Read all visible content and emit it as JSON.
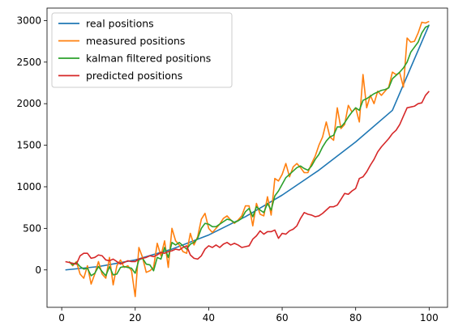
{
  "chart_data": {
    "type": "line",
    "title": "",
    "xlabel": "",
    "ylabel": "",
    "xlim": [
      -4,
      105
    ],
    "ylim": [
      -450,
      3150
    ],
    "xticks": [
      0,
      20,
      40,
      60,
      80,
      100
    ],
    "yticks": [
      0,
      500,
      1000,
      1500,
      2000,
      2500,
      3000
    ],
    "grid": false,
    "legend_position": "top-left",
    "series": [
      {
        "name": "real positions",
        "color": "#1f77b4",
        "x": [
          1,
          10,
          20,
          30,
          40,
          50,
          60,
          70,
          80,
          90,
          100
        ],
        "y": [
          0,
          40,
          120,
          250,
          420,
          640,
          900,
          1200,
          1540,
          1920,
          2950
        ]
      },
      {
        "name": "measured positions",
        "color": "#ff7f0e",
        "x": [
          2,
          3,
          4,
          5,
          6,
          7,
          8,
          9,
          10,
          11,
          12,
          13,
          14,
          15,
          16,
          17,
          18,
          19,
          20,
          21,
          22,
          23,
          24,
          25,
          26,
          27,
          28,
          29,
          30,
          31,
          32,
          33,
          34,
          35,
          36,
          37,
          38,
          39,
          40,
          41,
          42,
          43,
          44,
          45,
          46,
          47,
          48,
          49,
          50,
          51,
          52,
          53,
          54,
          55,
          56,
          57,
          58,
          59,
          60,
          61,
          62,
          63,
          64,
          65,
          66,
          67,
          68,
          69,
          70,
          71,
          72,
          73,
          74,
          75,
          76,
          77,
          78,
          79,
          80,
          81,
          82,
          83,
          84,
          85,
          86,
          87,
          88,
          89,
          90,
          91,
          92,
          93,
          94,
          95,
          96,
          97,
          98,
          99,
          100
        ],
        "y": [
          100,
          50,
          100,
          -50,
          -100,
          50,
          -170,
          -50,
          100,
          -50,
          -100,
          150,
          -180,
          50,
          120,
          30,
          50,
          -10,
          -320,
          270,
          150,
          -30,
          -10,
          30,
          320,
          170,
          350,
          30,
          500,
          350,
          300,
          220,
          200,
          440,
          300,
          400,
          610,
          680,
          500,
          450,
          500,
          550,
          620,
          650,
          600,
          560,
          600,
          650,
          770,
          770,
          530,
          800,
          670,
          650,
          880,
          660,
          1100,
          1070,
          1150,
          1280,
          1120,
          1240,
          1280,
          1230,
          1170,
          1170,
          1280,
          1370,
          1500,
          1600,
          1780,
          1600,
          1560,
          1950,
          1700,
          1750,
          1980,
          1900,
          1950,
          1780,
          2350,
          1950,
          2100,
          2000,
          2150,
          2100,
          2150,
          2200,
          2380,
          2350,
          2370,
          2200,
          2790,
          2740,
          2750,
          2850,
          2980,
          2970,
          2990
        ]
      },
      {
        "name": "kalman filtered positions",
        "color": "#2ca02c",
        "x": [
          2,
          3,
          4,
          5,
          6,
          7,
          8,
          9,
          10,
          11,
          12,
          13,
          14,
          15,
          16,
          17,
          18,
          19,
          20,
          21,
          22,
          23,
          24,
          25,
          26,
          27,
          28,
          29,
          30,
          31,
          32,
          33,
          34,
          35,
          36,
          37,
          38,
          39,
          40,
          41,
          42,
          43,
          44,
          45,
          46,
          47,
          48,
          49,
          50,
          51,
          52,
          53,
          54,
          55,
          56,
          57,
          58,
          59,
          60,
          61,
          62,
          63,
          64,
          65,
          66,
          67,
          68,
          69,
          70,
          71,
          72,
          73,
          74,
          75,
          76,
          77,
          78,
          79,
          80,
          81,
          82,
          83,
          84,
          85,
          86,
          87,
          88,
          89,
          90,
          91,
          92,
          93,
          94,
          95,
          96,
          97,
          98,
          99,
          100
        ],
        "y": [
          100,
          60,
          90,
          40,
          10,
          20,
          -70,
          -40,
          40,
          -20,
          -70,
          40,
          -60,
          -50,
          30,
          40,
          30,
          20,
          -40,
          120,
          140,
          70,
          60,
          -10,
          150,
          130,
          270,
          150,
          330,
          300,
          330,
          290,
          250,
          310,
          330,
          380,
          500,
          560,
          550,
          520,
          520,
          550,
          580,
          610,
          600,
          570,
          590,
          620,
          700,
          740,
          640,
          760,
          720,
          690,
          800,
          720,
          890,
          950,
          1030,
          1110,
          1150,
          1190,
          1230,
          1250,
          1220,
          1200,
          1250,
          1330,
          1390,
          1480,
          1550,
          1600,
          1620,
          1720,
          1720,
          1770,
          1840,
          1900,
          1950,
          1920,
          2040,
          2060,
          2090,
          2120,
          2140,
          2160,
          2170,
          2190,
          2300,
          2340,
          2380,
          2430,
          2500,
          2620,
          2680,
          2740,
          2850,
          2920,
          2940
        ]
      },
      {
        "name": "predicted positions",
        "color": "#d62728",
        "x": [
          1,
          2,
          3,
          4,
          5,
          6,
          7,
          8,
          9,
          10,
          11,
          12,
          13,
          14,
          15,
          16,
          17,
          18,
          19,
          20,
          21,
          22,
          23,
          24,
          25,
          26,
          27,
          28,
          29,
          30,
          31,
          32,
          33,
          34,
          35,
          36,
          37,
          38,
          39,
          40,
          41,
          42,
          43,
          44,
          45,
          46,
          47,
          48,
          49,
          50,
          51,
          52,
          53,
          54,
          55,
          56,
          57,
          58,
          59,
          60,
          61,
          62,
          63,
          64,
          65,
          66,
          67,
          68,
          69,
          70,
          71,
          72,
          73,
          74,
          75,
          76,
          77,
          78,
          79,
          80,
          81,
          82,
          83,
          84,
          85,
          86,
          87,
          88,
          89,
          90,
          91,
          92,
          93,
          94,
          95,
          96,
          97,
          98,
          99,
          100
        ],
        "y": [
          100,
          90,
          80,
          70,
          170,
          200,
          200,
          140,
          150,
          180,
          170,
          120,
          110,
          130,
          100,
          70,
          90,
          110,
          100,
          100,
          130,
          140,
          150,
          170,
          160,
          180,
          210,
          200,
          220,
          230,
          250,
          240,
          270,
          290,
          180,
          140,
          130,
          170,
          250,
          290,
          270,
          300,
          270,
          310,
          330,
          300,
          320,
          300,
          270,
          280,
          290,
          370,
          410,
          470,
          430,
          460,
          460,
          480,
          380,
          440,
          430,
          470,
          490,
          530,
          620,
          690,
          670,
          660,
          640,
          650,
          680,
          720,
          760,
          760,
          780,
          850,
          920,
          910,
          950,
          980,
          1100,
          1120,
          1180,
          1260,
          1330,
          1420,
          1480,
          1530,
          1580,
          1640,
          1680,
          1750,
          1850,
          1950,
          1960,
          1970,
          2000,
          2010,
          2100,
          2150
        ]
      }
    ]
  }
}
